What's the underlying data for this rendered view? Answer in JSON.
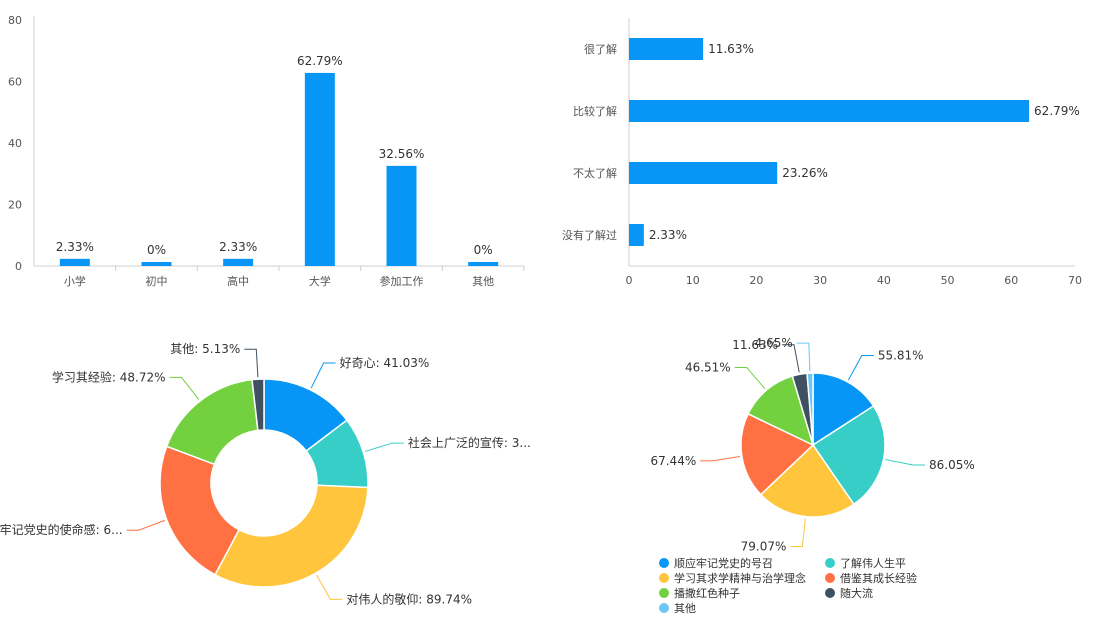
{
  "colors": {
    "bar": "#0796F5",
    "axis": "#CFCFCF",
    "grid": "#EDEDED",
    "pie": [
      "#0796F5",
      "#36CEC6",
      "#FFC53D",
      "#FF7043",
      "#73D03E",
      "#3F5161",
      "#6CC7F7"
    ]
  },
  "chart_data": [
    {
      "type": "bar",
      "orientation": "vertical",
      "categories": [
        "小学",
        "初中",
        "高中",
        "大学",
        "参加工作",
        "其他"
      ],
      "values": [
        2.33,
        0,
        2.33,
        62.79,
        32.56,
        0
      ],
      "value_labels": [
        "2.33%",
        "0%",
        "2.33%",
        "62.79%",
        "32.56%",
        "0%"
      ],
      "y_ticks": [
        "0",
        "20",
        "40",
        "60",
        "80"
      ],
      "ylim": [
        0,
        80
      ]
    },
    {
      "type": "bar",
      "orientation": "horizontal",
      "categories": [
        "很了解",
        "比较了解",
        "不太了解",
        "没有了解过"
      ],
      "values": [
        11.63,
        62.79,
        23.26,
        2.33
      ],
      "value_labels": [
        "11.63%",
        "62.79%",
        "23.26%",
        "2.33%"
      ],
      "x_ticks": [
        "0",
        "10",
        "20",
        "30",
        "40",
        "50",
        "60",
        "70"
      ],
      "xlim": [
        0,
        70
      ]
    },
    {
      "type": "pie",
      "donut": true,
      "slices": [
        {
          "label": "好奇心: 41.03%",
          "value": 41.03
        },
        {
          "label": "社会上广泛的宣传: 3...",
          "value": 30.77
        },
        {
          "label": "对伟人的敬仰: 89.74%",
          "value": 89.74
        },
        {
          "label": "牢记党史的使命感: 6...",
          "value": 64.1
        },
        {
          "label": "学习其经验: 48.72%",
          "value": 48.72
        },
        {
          "label": "其他: 5.13%",
          "value": 5.13
        }
      ]
    },
    {
      "type": "pie",
      "donut": false,
      "slices": [
        {
          "label": "55.81%",
          "value": 55.81
        },
        {
          "label": "86.05%",
          "value": 86.05
        },
        {
          "label": "79.07%",
          "value": 79.07
        },
        {
          "label": "67.44%",
          "value": 67.44
        },
        {
          "label": "46.51%",
          "value": 46.51
        },
        {
          "label": "11.63%",
          "value": 11.63
        },
        {
          "label": "4.65%",
          "value": 4.65
        }
      ],
      "legend": [
        "顺应牢记党史的号召",
        "了解伟人生平",
        "学习其求学精神与治学理念",
        "借鉴其成长经验",
        "播撒红色种子",
        "随大流",
        "其他"
      ]
    }
  ]
}
